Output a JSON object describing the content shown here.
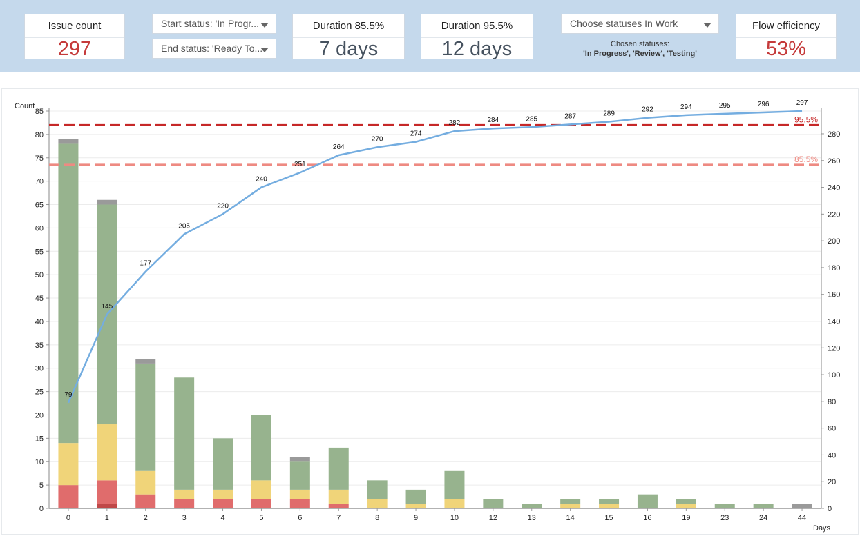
{
  "header": {
    "issue_count": {
      "label": "Issue count",
      "value": "297"
    },
    "start_status": {
      "value": "Start status: 'In Progr..."
    },
    "end_status": {
      "value": "End status: 'Ready To..."
    },
    "duration_85": {
      "label": "Duration 85.5%",
      "value": "7 days"
    },
    "duration_95": {
      "label": "Duration 95.5%",
      "value": "12 days"
    },
    "statuses": {
      "value": "Choose statuses In Work",
      "chosen_label": "Chosen statuses:",
      "chosen_values": "'In Progress', 'Review', 'Testing'"
    },
    "flow_efficiency": {
      "label": "Flow efficiency",
      "value": "53%"
    }
  },
  "colors": {
    "red": "#e06c6c",
    "dark_red": "#c04848",
    "yellow": "#f0d479",
    "green": "#97b38e",
    "gray": "#9a9a9a",
    "line": "#74ade0",
    "p95": "#c62828",
    "p85": "#ee8a82"
  },
  "chart_data": {
    "type": "bar",
    "xlabel": "Days",
    "ylabel": "Count",
    "ylim": [
      0,
      85
    ],
    "y2lim": [
      0,
      297
    ],
    "yticks": [
      0,
      5,
      10,
      15,
      20,
      25,
      30,
      35,
      40,
      45,
      50,
      55,
      60,
      65,
      70,
      75,
      80,
      85
    ],
    "y2ticks": [
      0,
      20,
      40,
      60,
      80,
      100,
      120,
      140,
      160,
      180,
      200,
      220,
      240,
      260,
      280
    ],
    "categories": [
      "0",
      "1",
      "2",
      "3",
      "4",
      "5",
      "6",
      "7",
      "8",
      "9",
      "10",
      "12",
      "13",
      "14",
      "15",
      "16",
      "19",
      "23",
      "24",
      "44"
    ],
    "series": [
      {
        "values": [
          0,
          1,
          0,
          0,
          0,
          0,
          0,
          0,
          0,
          0,
          0,
          0,
          0,
          0,
          0,
          0,
          0,
          0,
          0,
          0
        ],
        "color": "dark_red"
      },
      {
        "values": [
          5,
          5,
          3,
          2,
          2,
          2,
          2,
          1,
          0,
          0,
          0,
          0,
          0,
          0,
          0,
          0,
          0,
          0,
          0,
          0
        ],
        "color": "red"
      },
      {
        "values": [
          9,
          12,
          5,
          2,
          2,
          4,
          2,
          3,
          2,
          1,
          2,
          0,
          0,
          1,
          1,
          0,
          1,
          0,
          0,
          0
        ],
        "color": "yellow"
      },
      {
        "values": [
          64,
          47,
          23,
          24,
          11,
          14,
          6,
          9,
          4,
          3,
          6,
          2,
          1,
          1,
          1,
          3,
          1,
          1,
          1,
          0
        ],
        "color": "green"
      },
      {
        "values": [
          1,
          1,
          1,
          0,
          0,
          0,
          1,
          0,
          0,
          0,
          0,
          0,
          0,
          0,
          0,
          0,
          0,
          0,
          0,
          1
        ],
        "color": "gray"
      }
    ],
    "cumulative": {
      "values": [
        79,
        145,
        177,
        205,
        220,
        240,
        251,
        264,
        270,
        274,
        282,
        284,
        285,
        287,
        289,
        292,
        294,
        295,
        296,
        297
      ],
      "color": "line"
    },
    "reference_lines": [
      {
        "label": "95.5%",
        "value": 82,
        "color": "p95"
      },
      {
        "label": "85.5%",
        "value": 73.5,
        "color": "p85"
      }
    ]
  }
}
